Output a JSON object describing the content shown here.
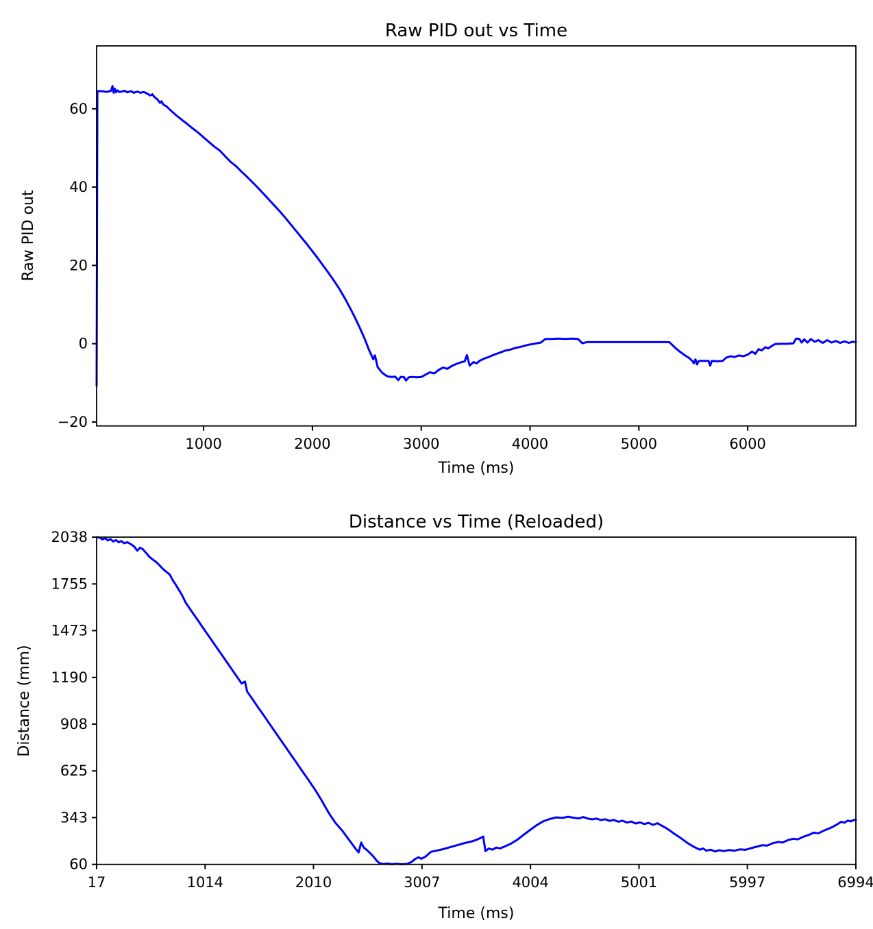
{
  "page": {
    "background": "#ffffff",
    "text_color": "#000000",
    "axis_color": "#000000"
  },
  "chart_data": [
    {
      "type": "line",
      "title": "Raw PID out vs Time",
      "xlabel": "Time (ms)",
      "ylabel": "Raw PID out",
      "line_color": "#0000ff",
      "grid": false,
      "legend": "none",
      "xlim": [
        17,
        6994
      ],
      "ylim": [
        -21.0,
        76.06
      ],
      "x_tick_values": [
        1000,
        2000,
        3000,
        4000,
        5000,
        6000
      ],
      "x_tick_labels": [
        "1000",
        "2000",
        "3000",
        "4000",
        "5000",
        "6000"
      ],
      "y_tick_values": [
        -20,
        0,
        20,
        40,
        60
      ],
      "y_tick_labels": [
        "−20",
        "0",
        "20",
        "40",
        "60"
      ],
      "points": [
        [
          17,
          -10.7
        ],
        [
          24,
          64.5
        ],
        [
          70,
          64.5
        ],
        [
          110,
          64.3
        ],
        [
          150,
          64.6
        ],
        [
          163,
          65.8
        ],
        [
          174,
          64.1
        ],
        [
          185,
          65.1
        ],
        [
          196,
          64.2
        ],
        [
          210,
          64.7
        ],
        [
          225,
          64.3
        ],
        [
          250,
          64.4
        ],
        [
          275,
          64.6
        ],
        [
          300,
          64.2
        ],
        [
          330,
          64.5
        ],
        [
          360,
          64.1
        ],
        [
          390,
          64.4
        ],
        [
          420,
          64.1
        ],
        [
          450,
          64.3
        ],
        [
          480,
          63.9
        ],
        [
          510,
          63.4
        ],
        [
          528,
          63.7
        ],
        [
          548,
          63.0
        ],
        [
          575,
          62.4
        ],
        [
          600,
          61.5
        ],
        [
          614,
          61.9
        ],
        [
          630,
          61.1
        ],
        [
          660,
          60.6
        ],
        [
          700,
          59.5
        ],
        [
          750,
          58.3
        ],
        [
          800,
          57.2
        ],
        [
          850,
          56.1
        ],
        [
          900,
          55.0
        ],
        [
          950,
          53.9
        ],
        [
          1000,
          52.7
        ],
        [
          1050,
          51.5
        ],
        [
          1100,
          50.3
        ],
        [
          1150,
          49.3
        ],
        [
          1200,
          47.8
        ],
        [
          1250,
          46.4
        ],
        [
          1300,
          45.3
        ],
        [
          1350,
          43.9
        ],
        [
          1400,
          42.6
        ],
        [
          1450,
          41.2
        ],
        [
          1500,
          39.8
        ],
        [
          1550,
          38.3
        ],
        [
          1600,
          36.8
        ],
        [
          1650,
          35.3
        ],
        [
          1700,
          33.8
        ],
        [
          1750,
          32.2
        ],
        [
          1800,
          30.5
        ],
        [
          1850,
          28.8
        ],
        [
          1900,
          27.1
        ],
        [
          1950,
          25.4
        ],
        [
          2000,
          23.6
        ],
        [
          2050,
          21.8
        ],
        [
          2100,
          19.9
        ],
        [
          2150,
          18.0
        ],
        [
          2200,
          16.0
        ],
        [
          2250,
          13.9
        ],
        [
          2300,
          11.5
        ],
        [
          2350,
          8.9
        ],
        [
          2390,
          6.7
        ],
        [
          2430,
          4.4
        ],
        [
          2480,
          1.3
        ],
        [
          2520,
          -1.6
        ],
        [
          2560,
          -4.0
        ],
        [
          2575,
          -3.0
        ],
        [
          2600,
          -6.0
        ],
        [
          2640,
          -7.4
        ],
        [
          2680,
          -8.2
        ],
        [
          2700,
          -8.4
        ],
        [
          2730,
          -8.5
        ],
        [
          2760,
          -8.4
        ],
        [
          2790,
          -9.3
        ],
        [
          2810,
          -8.5
        ],
        [
          2840,
          -8.5
        ],
        [
          2860,
          -9.4
        ],
        [
          2885,
          -8.6
        ],
        [
          2920,
          -8.5
        ],
        [
          2960,
          -8.6
        ],
        [
          3000,
          -8.5
        ],
        [
          3040,
          -7.9
        ],
        [
          3080,
          -7.3
        ],
        [
          3120,
          -7.6
        ],
        [
          3160,
          -6.7
        ],
        [
          3200,
          -6.1
        ],
        [
          3240,
          -6.4
        ],
        [
          3280,
          -5.7
        ],
        [
          3320,
          -5.2
        ],
        [
          3360,
          -4.8
        ],
        [
          3400,
          -4.5
        ],
        [
          3420,
          -2.9
        ],
        [
          3445,
          -5.6
        ],
        [
          3480,
          -4.7
        ],
        [
          3510,
          -5.0
        ],
        [
          3540,
          -4.3
        ],
        [
          3580,
          -3.8
        ],
        [
          3620,
          -3.4
        ],
        [
          3660,
          -2.9
        ],
        [
          3700,
          -2.5
        ],
        [
          3740,
          -2.1
        ],
        [
          3780,
          -1.7
        ],
        [
          3820,
          -1.5
        ],
        [
          3860,
          -1.1
        ],
        [
          3900,
          -0.9
        ],
        [
          3940,
          -0.6
        ],
        [
          3980,
          -0.3
        ],
        [
          4020,
          -0.1
        ],
        [
          4060,
          0.1
        ],
        [
          4100,
          0.3
        ],
        [
          4140,
          1.2
        ],
        [
          4200,
          1.2
        ],
        [
          4260,
          1.3
        ],
        [
          4320,
          1.2
        ],
        [
          4380,
          1.3
        ],
        [
          4440,
          1.2
        ],
        [
          4481,
          0.1
        ],
        [
          4520,
          0.4
        ],
        [
          4600,
          0.4
        ],
        [
          4700,
          0.4
        ],
        [
          4800,
          0.4
        ],
        [
          4900,
          0.4
        ],
        [
          5000,
          0.4
        ],
        [
          5100,
          0.4
        ],
        [
          5200,
          0.4
        ],
        [
          5280,
          0.4
        ],
        [
          5310,
          -0.4
        ],
        [
          5340,
          -1.2
        ],
        [
          5370,
          -1.9
        ],
        [
          5400,
          -2.5
        ],
        [
          5430,
          -3.1
        ],
        [
          5460,
          -3.6
        ],
        [
          5490,
          -4.4
        ],
        [
          5505,
          -5.0
        ],
        [
          5520,
          -4.0
        ],
        [
          5535,
          -5.3
        ],
        [
          5550,
          -4.4
        ],
        [
          5600,
          -4.4
        ],
        [
          5640,
          -4.4
        ],
        [
          5655,
          -5.6
        ],
        [
          5670,
          -4.4
        ],
        [
          5720,
          -4.5
        ],
        [
          5770,
          -4.4
        ],
        [
          5800,
          -3.6
        ],
        [
          5840,
          -3.2
        ],
        [
          5880,
          -3.4
        ],
        [
          5920,
          -3.0
        ],
        [
          5960,
          -3.2
        ],
        [
          6000,
          -2.8
        ],
        [
          6040,
          -2.0
        ],
        [
          6070,
          -2.6
        ],
        [
          6100,
          -1.4
        ],
        [
          6130,
          -1.7
        ],
        [
          6160,
          -0.9
        ],
        [
          6190,
          -1.2
        ],
        [
          6220,
          -0.6
        ],
        [
          6250,
          -0.1
        ],
        [
          6300,
          0.0
        ],
        [
          6360,
          0.0
        ],
        [
          6420,
          0.1
        ],
        [
          6445,
          1.3
        ],
        [
          6475,
          1.2
        ],
        [
          6495,
          0.3
        ],
        [
          6520,
          1.1
        ],
        [
          6550,
          0.3
        ],
        [
          6580,
          1.2
        ],
        [
          6615,
          0.5
        ],
        [
          6650,
          0.9
        ],
        [
          6690,
          0.2
        ],
        [
          6730,
          0.9
        ],
        [
          6770,
          0.3
        ],
        [
          6810,
          0.7
        ],
        [
          6850,
          0.2
        ],
        [
          6890,
          0.6
        ],
        [
          6930,
          0.2
        ],
        [
          6965,
          0.5
        ],
        [
          6994,
          0.4
        ]
      ]
    },
    {
      "type": "line",
      "title": "Distance vs Time (Reloaded)",
      "xlabel": "Time (ms)",
      "ylabel": "Distance (mm)",
      "line_color": "#0000ff",
      "grid": false,
      "legend": "none",
      "xlim": [
        17,
        6994
      ],
      "ylim": [
        60,
        2038
      ],
      "x_tick_values": [
        17,
        1014,
        2010,
        3007,
        4004,
        5001,
        5997,
        6994
      ],
      "x_tick_labels": [
        "17",
        "1014",
        "2010",
        "3007",
        "4004",
        "5001",
        "5997",
        "6994"
      ],
      "y_tick_values": [
        60,
        343,
        625,
        908,
        1190,
        1473,
        1755,
        2038
      ],
      "y_tick_labels": [
        "60",
        "343",
        "625",
        "908",
        "1190",
        "1473",
        "1755",
        "2038"
      ],
      "points": [
        [
          17,
          2038
        ],
        [
          45,
          2035
        ],
        [
          70,
          2024
        ],
        [
          95,
          2032
        ],
        [
          120,
          2018
        ],
        [
          145,
          2026
        ],
        [
          170,
          2012
        ],
        [
          195,
          2020
        ],
        [
          220,
          2007
        ],
        [
          245,
          2014
        ],
        [
          270,
          2001
        ],
        [
          300,
          2007
        ],
        [
          330,
          1996
        ],
        [
          363,
          1981
        ],
        [
          390,
          1956
        ],
        [
          415,
          1974
        ],
        [
          440,
          1966
        ],
        [
          470,
          1944
        ],
        [
          500,
          1920
        ],
        [
          530,
          1904
        ],
        [
          563,
          1888
        ],
        [
          595,
          1868
        ],
        [
          626,
          1846
        ],
        [
          658,
          1828
        ],
        [
          689,
          1812
        ],
        [
          716,
          1778
        ],
        [
          740,
          1755
        ],
        [
          770,
          1722
        ],
        [
          800,
          1690
        ],
        [
          836,
          1641
        ],
        [
          850,
          1628
        ],
        [
          900,
          1580
        ],
        [
          950,
          1533
        ],
        [
          1000,
          1485
        ],
        [
          1050,
          1438
        ],
        [
          1100,
          1390
        ],
        [
          1150,
          1343
        ],
        [
          1200,
          1295
        ],
        [
          1250,
          1248
        ],
        [
          1300,
          1200
        ],
        [
          1350,
          1153
        ],
        [
          1380,
          1165
        ],
        [
          1400,
          1105
        ],
        [
          1450,
          1058
        ],
        [
          1500,
          1010
        ],
        [
          1550,
          963
        ],
        [
          1600,
          915
        ],
        [
          1650,
          868
        ],
        [
          1700,
          820
        ],
        [
          1750,
          773
        ],
        [
          1800,
          725
        ],
        [
          1850,
          678
        ],
        [
          1900,
          630
        ],
        [
          1950,
          583
        ],
        [
          1969,
          565
        ],
        [
          2026,
          510
        ],
        [
          2080,
          452
        ],
        [
          2152,
          369
        ],
        [
          2210,
          312
        ],
        [
          2278,
          261
        ],
        [
          2341,
          204
        ],
        [
          2400,
          152
        ],
        [
          2425,
          133
        ],
        [
          2448,
          192
        ],
        [
          2470,
          163
        ],
        [
          2500,
          147
        ],
        [
          2530,
          128
        ],
        [
          2560,
          108
        ],
        [
          2590,
          83
        ],
        [
          2615,
          68
        ],
        [
          2650,
          62
        ],
        [
          2690,
          66
        ],
        [
          2730,
          61
        ],
        [
          2770,
          64
        ],
        [
          2820,
          61
        ],
        [
          2870,
          63
        ],
        [
          2910,
          74
        ],
        [
          2945,
          93
        ],
        [
          2975,
          103
        ],
        [
          3000,
          94
        ],
        [
          3040,
          107
        ],
        [
          3090,
          136
        ],
        [
          3140,
          143
        ],
        [
          3200,
          152
        ],
        [
          3260,
          163
        ],
        [
          3330,
          176
        ],
        [
          3400,
          189
        ],
        [
          3460,
          198
        ],
        [
          3510,
          209
        ],
        [
          3550,
          221
        ],
        [
          3570,
          228
        ],
        [
          3590,
          140
        ],
        [
          3620,
          156
        ],
        [
          3655,
          149
        ],
        [
          3690,
          162
        ],
        [
          3725,
          157
        ],
        [
          3770,
          169
        ],
        [
          3820,
          184
        ],
        [
          3880,
          208
        ],
        [
          3940,
          238
        ],
        [
          4000,
          268
        ],
        [
          4060,
          297
        ],
        [
          4120,
          320
        ],
        [
          4180,
          334
        ],
        [
          4240,
          344
        ],
        [
          4300,
          341
        ],
        [
          4350,
          348
        ],
        [
          4400,
          342
        ],
        [
          4450,
          338
        ],
        [
          4490,
          346
        ],
        [
          4530,
          337
        ],
        [
          4570,
          332
        ],
        [
          4610,
          337
        ],
        [
          4650,
          328
        ],
        [
          4690,
          333
        ],
        [
          4730,
          323
        ],
        [
          4770,
          329
        ],
        [
          4810,
          318
        ],
        [
          4850,
          324
        ],
        [
          4890,
          313
        ],
        [
          4930,
          319
        ],
        [
          4970,
          307
        ],
        [
          5010,
          314
        ],
        [
          5050,
          304
        ],
        [
          5090,
          311
        ],
        [
          5130,
          299
        ],
        [
          5170,
          309
        ],
        [
          5210,
          294
        ],
        [
          5250,
          280
        ],
        [
          5290,
          262
        ],
        [
          5330,
          243
        ],
        [
          5370,
          226
        ],
        [
          5410,
          207
        ],
        [
          5450,
          188
        ],
        [
          5490,
          172
        ],
        [
          5530,
          158
        ],
        [
          5560,
          149
        ],
        [
          5590,
          156
        ],
        [
          5620,
          143
        ],
        [
          5660,
          149
        ],
        [
          5700,
          138
        ],
        [
          5740,
          146
        ],
        [
          5780,
          140
        ],
        [
          5830,
          147
        ],
        [
          5880,
          143
        ],
        [
          5930,
          151
        ],
        [
          5980,
          148
        ],
        [
          6030,
          158
        ],
        [
          6080,
          166
        ],
        [
          6130,
          176
        ],
        [
          6180,
          174
        ],
        [
          6230,
          188
        ],
        [
          6280,
          196
        ],
        [
          6320,
          192
        ],
        [
          6370,
          207
        ],
        [
          6420,
          215
        ],
        [
          6460,
          211
        ],
        [
          6510,
          227
        ],
        [
          6560,
          238
        ],
        [
          6610,
          252
        ],
        [
          6650,
          248
        ],
        [
          6700,
          264
        ],
        [
          6750,
          278
        ],
        [
          6790,
          290
        ],
        [
          6830,
          305
        ],
        [
          6860,
          318
        ],
        [
          6890,
          312
        ],
        [
          6920,
          325
        ],
        [
          6950,
          320
        ],
        [
          6980,
          330
        ],
        [
          6994,
          327
        ]
      ]
    }
  ]
}
